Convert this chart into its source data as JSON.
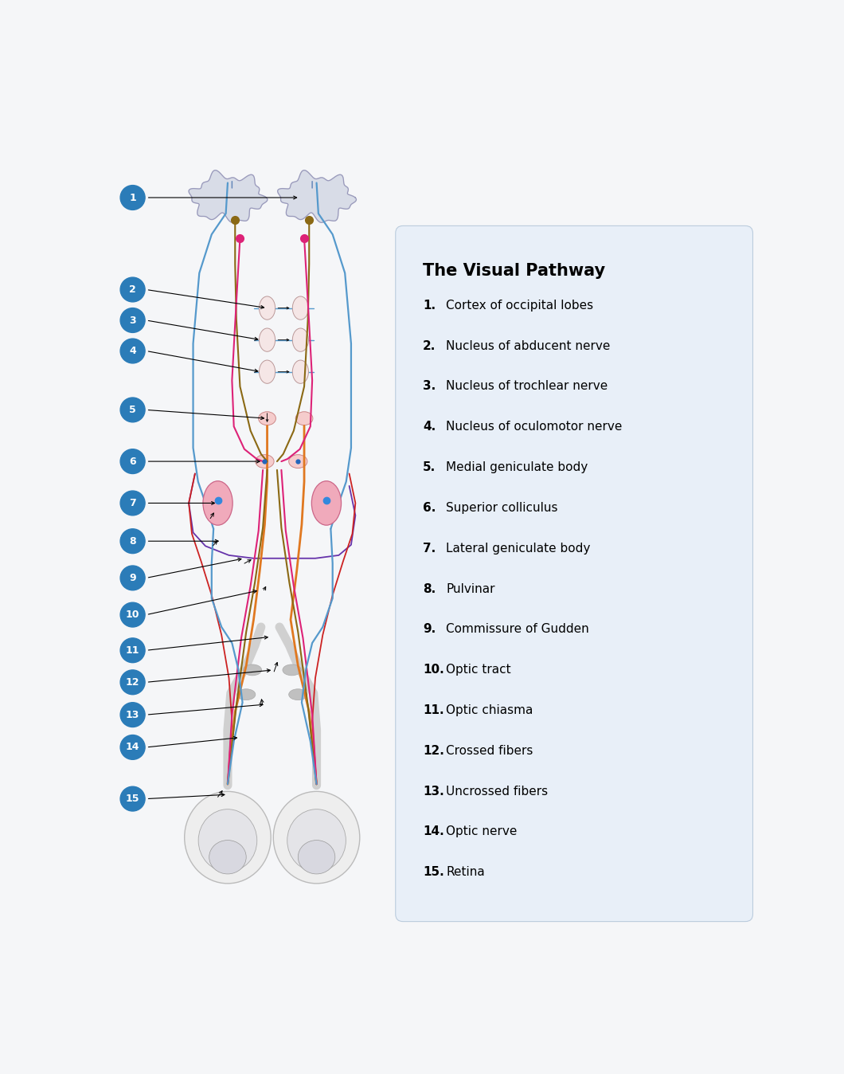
{
  "title": "The Visual Pathway",
  "background_color": "#f5f6f8",
  "legend_bg": "#e8eff8",
  "items": [
    {
      "num": "1",
      "text": "Cortex of occipital lobes"
    },
    {
      "num": "2",
      "text": "Nucleus of abducent nerve"
    },
    {
      "num": "3",
      "text": "Nucleus of trochlear nerve"
    },
    {
      "num": "4",
      "text": "Nucleus of oculomotor nerve"
    },
    {
      "num": "5",
      "text": "Medial geniculate body"
    },
    {
      "num": "6",
      "text": "Superior colliculus"
    },
    {
      "num": "7",
      "text": "Lateral geniculate body"
    },
    {
      "num": "8",
      "text": "Pulvinar"
    },
    {
      "num": "9",
      "text": "Commissure of Gudden"
    },
    {
      "num": "10",
      "text": "Optic tract"
    },
    {
      "num": "11",
      "text": "Optic chiasma"
    },
    {
      "num": "12",
      "text": "Crossed fibers"
    },
    {
      "num": "13",
      "text": "Uncrossed fibers"
    },
    {
      "num": "14",
      "text": "Optic nerve"
    },
    {
      "num": "15",
      "text": "Retina"
    }
  ],
  "label_circle_color": "#2b7cb8",
  "label_text_color": "#ffffff",
  "c_blue": "#5599cc",
  "c_brown": "#8B6914",
  "c_mag": "#dd2277",
  "c_orange": "#e07820",
  "c_red": "#cc2222",
  "c_purple": "#6633aa",
  "c_gray": "#aaaaaa",
  "c_lgray": "#cccccc"
}
